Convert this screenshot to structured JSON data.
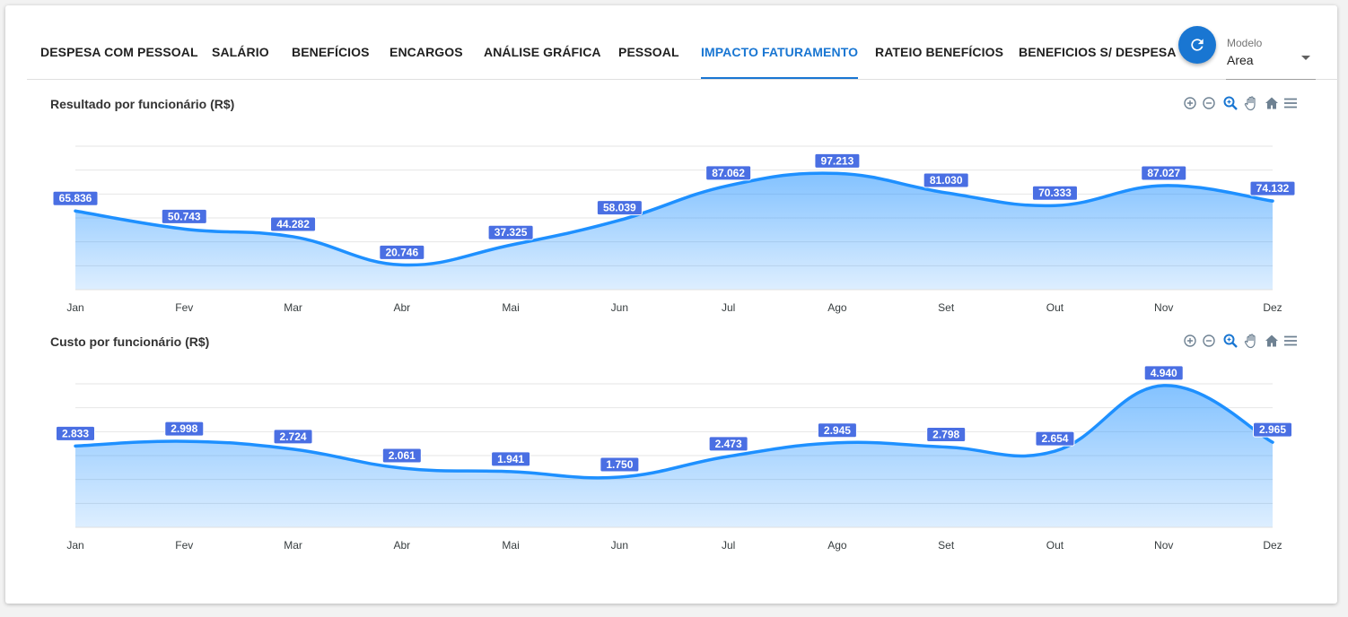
{
  "tabs": [
    {
      "label": "DESPESA COM PESSOAL",
      "active": false
    },
    {
      "label": "SALÁRIO",
      "active": false
    },
    {
      "label": "BENEFÍCIOS",
      "active": false
    },
    {
      "label": "ENCARGOS",
      "active": false
    },
    {
      "label": "ANÁLISE GRÁFICA",
      "active": false
    },
    {
      "label": "PESSOAL",
      "active": false
    },
    {
      "label": "IMPACTO FATURAMENTO",
      "active": true
    },
    {
      "label": "RATEIO BENEFÍCIOS",
      "active": false
    },
    {
      "label": "BENEFICIOS S/ DESPESA",
      "active": false
    }
  ],
  "refresh_icon": "refresh-icon",
  "model_select": {
    "label": "Modelo",
    "value": "Area"
  },
  "toolbar_icons": [
    "zoom-in-icon",
    "zoom-out-icon",
    "zoom-selection-icon",
    "pan-icon",
    "home-icon",
    "menu-icon"
  ],
  "colors": {
    "accent": "#1976d2",
    "series": "#1e90ff",
    "label_bg": "#4a6fe3"
  },
  "chart_data": [
    {
      "type": "area",
      "title": "Resultado por funcionário (R$)",
      "categories": [
        "Jan",
        "Fev",
        "Mar",
        "Abr",
        "Mai",
        "Jun",
        "Jul",
        "Ago",
        "Set",
        "Out",
        "Nov",
        "Dez"
      ],
      "values": [
        65.836,
        50.743,
        44.282,
        20.746,
        37.325,
        58.039,
        87.062,
        97.213,
        81.03,
        70.333,
        87.027,
        74.132
      ],
      "labels": [
        "65.836",
        "50.743",
        "44.282",
        "20.746",
        "37.325",
        "58.039",
        "87.062",
        "97.213",
        "81.030",
        "70.333",
        "87.027",
        "74.132"
      ],
      "ylim": [
        0,
        120
      ],
      "grid": true,
      "legend": false
    },
    {
      "type": "area",
      "title": "Custo por funcionário (R$)",
      "categories": [
        "Jan",
        "Fev",
        "Mar",
        "Abr",
        "Mai",
        "Jun",
        "Jul",
        "Ago",
        "Set",
        "Out",
        "Nov",
        "Dez"
      ],
      "values": [
        2.833,
        2.998,
        2.724,
        2.061,
        1.941,
        1.75,
        2.473,
        2.945,
        2.798,
        2.654,
        4.94,
        2.965
      ],
      "labels": [
        "2.833",
        "2.998",
        "2.724",
        "2.061",
        "1.941",
        "1.750",
        "2.473",
        "2.945",
        "2.798",
        "2.654",
        "4.940",
        "2.965"
      ],
      "ylim": [
        0,
        5
      ],
      "grid": true,
      "legend": false
    }
  ]
}
